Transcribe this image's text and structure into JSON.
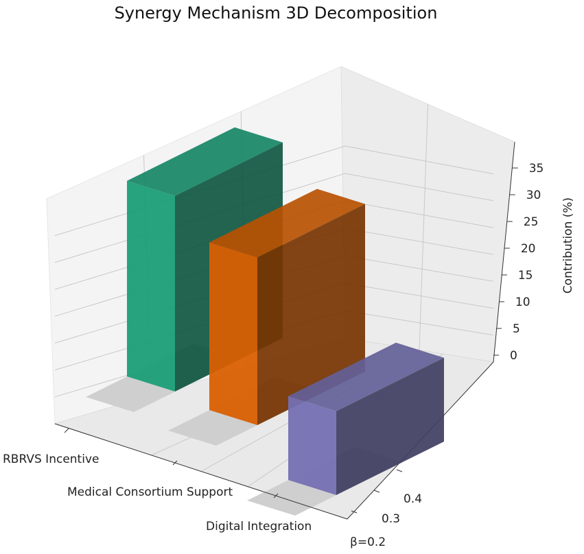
{
  "chart_data": {
    "type": "bar",
    "title": "Synergy Mechanism 3D Decomposition",
    "zlabel": "Contribution (%)",
    "categories": [
      "RBRVS Incentive",
      "Medical Consortium Support",
      "Digital Integration"
    ],
    "values": [
      35,
      30,
      15
    ],
    "colors": [
      "#1b9e77",
      "#d95f02",
      "#7570b3"
    ],
    "beta_ticks": [
      "β=0.2",
      "0.3",
      "0.4"
    ],
    "z_ticks": [
      "0",
      "5",
      "10",
      "15",
      "20",
      "25",
      "30",
      "35"
    ],
    "zlim": [
      0,
      38
    ],
    "grid": true
  }
}
